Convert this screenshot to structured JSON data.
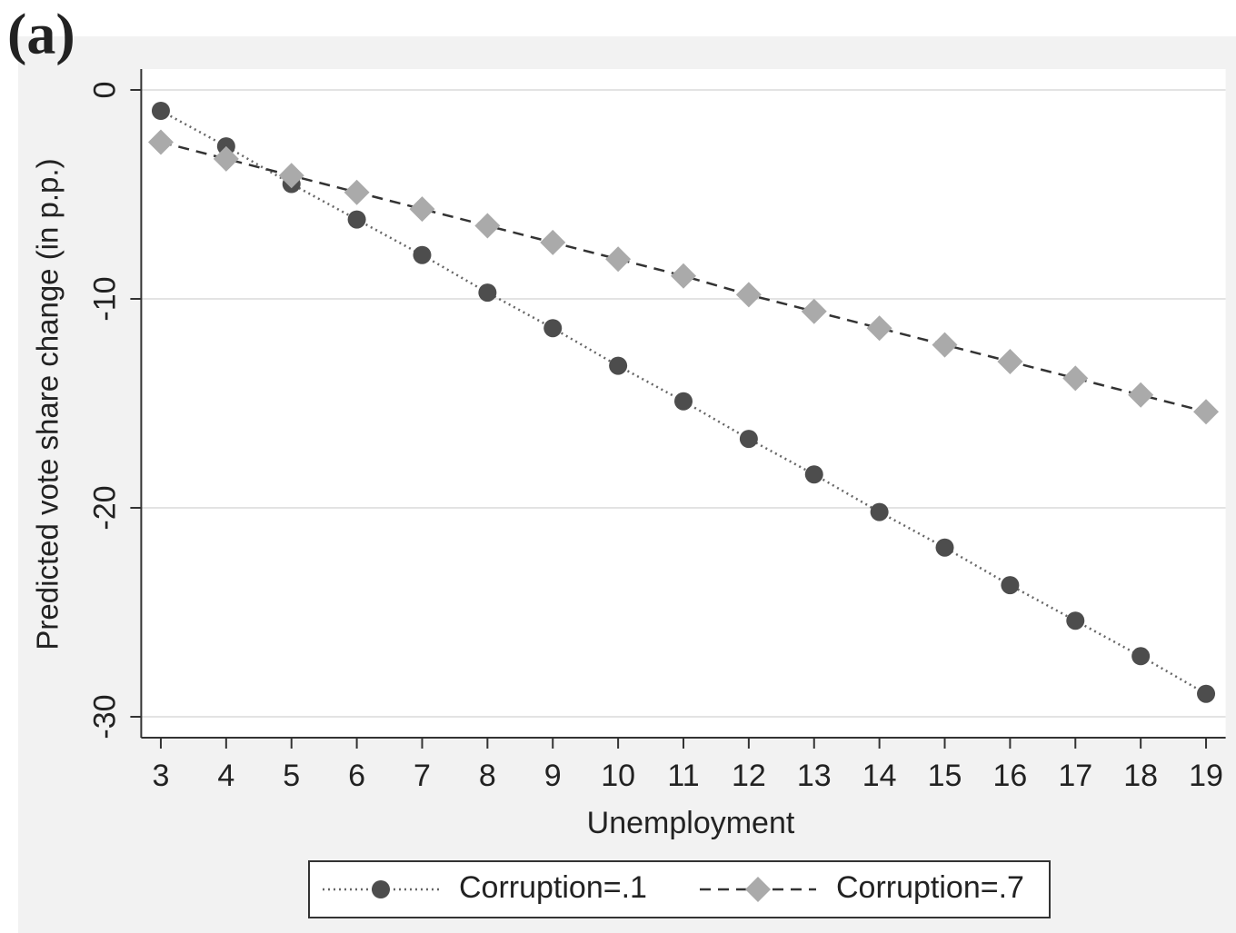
{
  "chart_data": {
    "type": "line",
    "panel_label": "(a)",
    "x_label": "Unemployment",
    "y_label": "Predicted vote share change (in p.p.)",
    "x": [
      3,
      4,
      5,
      6,
      7,
      8,
      9,
      10,
      11,
      12,
      13,
      14,
      15,
      16,
      17,
      18,
      19
    ],
    "series": [
      {
        "name": "Corruption=.1",
        "color": "#4d4d4d",
        "line_color": "#666666",
        "marker": "circle",
        "line_style": "dotted",
        "values": [
          -1.0,
          -2.7,
          -4.5,
          -6.2,
          -7.9,
          -9.7,
          -11.4,
          -13.2,
          -14.9,
          -16.7,
          -18.4,
          -20.2,
          -21.9,
          -23.7,
          -25.4,
          -27.1,
          -28.9
        ]
      },
      {
        "name": "Corruption=.7",
        "color": "#aaaaaa",
        "line_color": "#333333",
        "marker": "diamond",
        "line_style": "dashed",
        "values": [
          -2.5,
          -3.3,
          -4.1,
          -4.9,
          -5.7,
          -6.5,
          -7.3,
          -8.1,
          -8.9,
          -9.8,
          -10.6,
          -11.4,
          -12.2,
          -13.0,
          -13.8,
          -14.6,
          -15.4
        ]
      }
    ],
    "xlim": [
      2.7,
      19.3
    ],
    "xticks": [
      3,
      4,
      5,
      6,
      7,
      8,
      9,
      10,
      11,
      12,
      13,
      14,
      15,
      16,
      17,
      18,
      19
    ],
    "ylim": [
      -31,
      1
    ],
    "yticks": [
      0,
      -10,
      -20,
      -30
    ],
    "grid": true,
    "legend": "bottom"
  }
}
